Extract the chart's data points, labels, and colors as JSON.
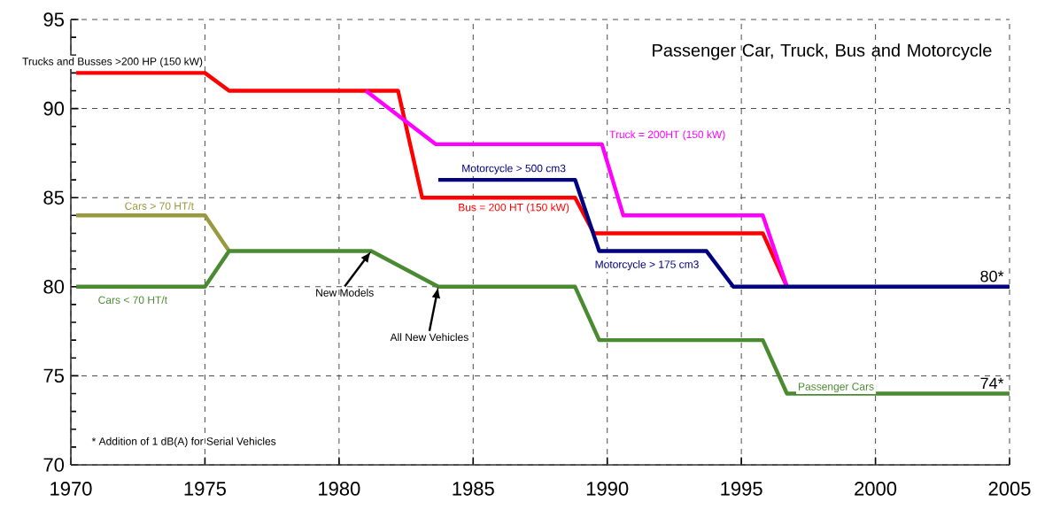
{
  "chart_data": {
    "type": "line",
    "title": "Passenger Car, Truck, Bus and Motorcycle",
    "xlim": [
      1970,
      2005
    ],
    "xticks": [
      1970,
      1975,
      1980,
      1985,
      1990,
      1995,
      2000,
      2005
    ],
    "ylim": [
      70,
      95
    ],
    "yticks": [
      70,
      75,
      80,
      85,
      90,
      95
    ],
    "grid": true,
    "line_style": "solid",
    "marker": "none",
    "series": [
      {
        "name": "Trucks and Busses >200 HP (150 kW)",
        "color": "#ff0000",
        "x": [
          1970.2,
          1975,
          1975.9,
          1982.2,
          1983.1,
          1988.8,
          1989.5,
          1995.8,
          1996.7
        ],
        "values": [
          92,
          92,
          91,
          91,
          85,
          85,
          83,
          83,
          80
        ]
      },
      {
        "name": "Truck = 200HT (150 kW)",
        "color": "#ff00ff",
        "x": [
          1981.0,
          1983.6,
          1989.8,
          1990.6,
          1995.8,
          1996.7
        ],
        "values": [
          91,
          88,
          88,
          84,
          84,
          80
        ]
      },
      {
        "name": "Motorcycle > 500 cm3",
        "color": "#000080",
        "x": [
          1983.7,
          1988.8,
          1989.7,
          1993.7,
          1994.7,
          2005
        ],
        "values": [
          86,
          86,
          82,
          82,
          80,
          80
        ]
      },
      {
        "name": "Cars > 70 HT/t",
        "color": "#999940",
        "x": [
          1970.2,
          1975,
          1975.9
        ],
        "values": [
          84,
          84,
          82
        ]
      },
      {
        "name": "Cars < 70 HT/t",
        "color": "#4a8a30",
        "x": [
          1970.2,
          1975,
          1975.9,
          1981.2,
          1983.7,
          1988.8,
          1989.7,
          1995.8,
          1996.7,
          2005
        ],
        "values": [
          80,
          80,
          82,
          82,
          80,
          80,
          77,
          77,
          74,
          74
        ]
      }
    ],
    "annotations": [
      {
        "text": "Bus = 200 HT (150 kW)",
        "x": 1988.8,
        "y": 85
      },
      {
        "text": "Motorcycle > 175 cm3",
        "x": 1993.7,
        "y": 82
      },
      {
        "text": "Passenger Cars",
        "x": 1996.7,
        "y": 74
      },
      {
        "text": "80*",
        "x": 2005,
        "y": 80
      },
      {
        "text": "74*",
        "x": 2005,
        "y": 74
      },
      "New Models",
      "All New Vehicles",
      "* Addition of 1 dB(A) for Serial Vehicles"
    ]
  }
}
